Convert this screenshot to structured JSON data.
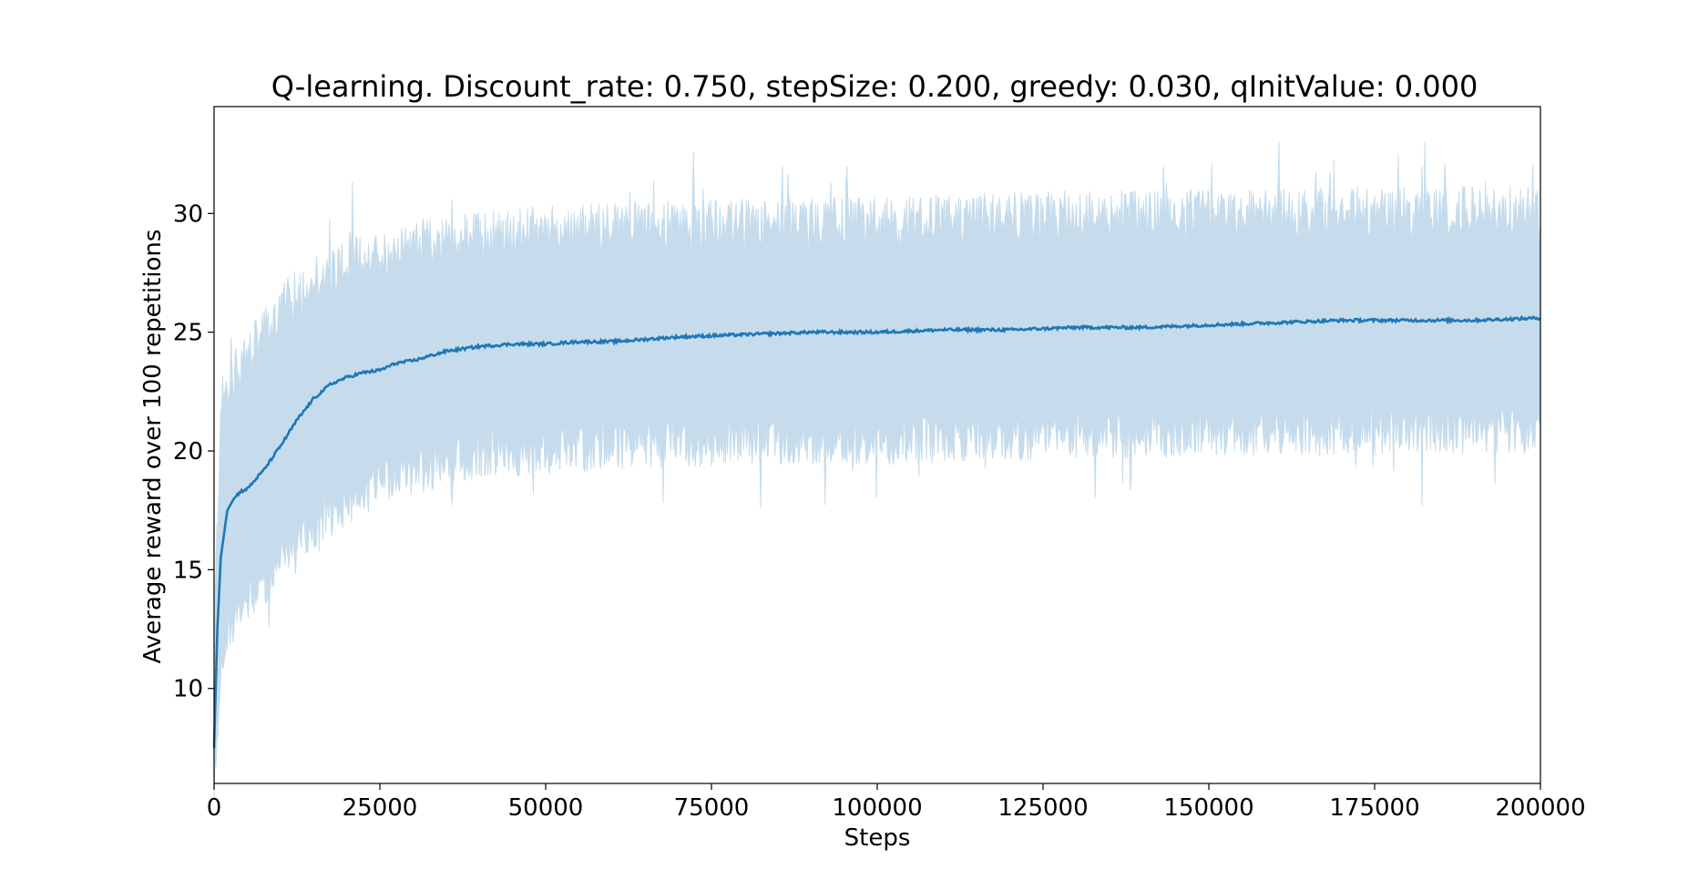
{
  "chart_data": {
    "type": "line",
    "title": "Q-learning. Discount_rate: 0.750, stepSize: 0.200, greedy: 0.030, qInitValue: 0.000",
    "xlabel": "Steps",
    "ylabel": "Average reward over 100 repetitions",
    "xlim": [
      0,
      200000
    ],
    "ylim": [
      6,
      34.5
    ],
    "x_ticks": [
      0,
      25000,
      50000,
      75000,
      100000,
      125000,
      150000,
      175000,
      200000
    ],
    "x_tick_labels": [
      "0",
      "25000",
      "50000",
      "75000",
      "100000",
      "125000",
      "150000",
      "175000",
      "200000"
    ],
    "y_ticks": [
      10,
      15,
      20,
      25,
      30
    ],
    "y_tick_labels": [
      "10",
      "15",
      "20",
      "25",
      "30"
    ],
    "grid": false,
    "colors": {
      "mean_line": "#1f77b4",
      "band": "#c6dcec"
    },
    "series": [
      {
        "role": "mean",
        "x": [
          0,
          500,
          1000,
          2000,
          3000,
          4000,
          5000,
          7500,
          10000,
          12500,
          15000,
          17500,
          20000,
          22500,
          25000,
          27500,
          30000,
          35000,
          40000,
          45000,
          50000,
          55000,
          60000,
          70000,
          80000,
          90000,
          100000,
          110000,
          120000,
          130000,
          140000,
          150000,
          160000,
          170000,
          180000,
          190000,
          200000
        ],
        "values": [
          7.5,
          12.5,
          15.5,
          17.5,
          18.0,
          18.3,
          18.4,
          19.2,
          20.2,
          21.3,
          22.2,
          22.8,
          23.1,
          23.3,
          23.4,
          23.7,
          23.8,
          24.2,
          24.4,
          24.5,
          24.5,
          24.6,
          24.6,
          24.8,
          24.9,
          25.0,
          25.0,
          25.1,
          25.1,
          25.2,
          25.2,
          25.3,
          25.4,
          25.5,
          25.5,
          25.5,
          25.6
        ]
      },
      {
        "role": "band-upper",
        "x": [
          0,
          1000,
          2500,
          5000,
          7500,
          10000,
          15000,
          20000,
          25000,
          30000,
          40000,
          50000,
          60000,
          80000,
          100000,
          125000,
          150000,
          175000,
          200000
        ],
        "values": [
          11.5,
          21.5,
          22.5,
          23.5,
          24.5,
          25.5,
          26.8,
          27.5,
          27.8,
          28.2,
          28.6,
          28.8,
          29.0,
          29.1,
          29.2,
          29.4,
          29.5,
          29.6,
          29.7
        ]
      },
      {
        "role": "band-lower",
        "x": [
          0,
          1000,
          2500,
          5000,
          7500,
          10000,
          15000,
          20000,
          25000,
          30000,
          40000,
          50000,
          60000,
          80000,
          100000,
          125000,
          150000,
          175000,
          200000
        ],
        "values": [
          6.0,
          11.5,
          13.0,
          14.0,
          14.8,
          15.8,
          17.2,
          18.3,
          19.0,
          19.5,
          20.2,
          20.4,
          20.6,
          20.8,
          20.8,
          21.0,
          21.1,
          21.2,
          21.3
        ]
      }
    ]
  }
}
